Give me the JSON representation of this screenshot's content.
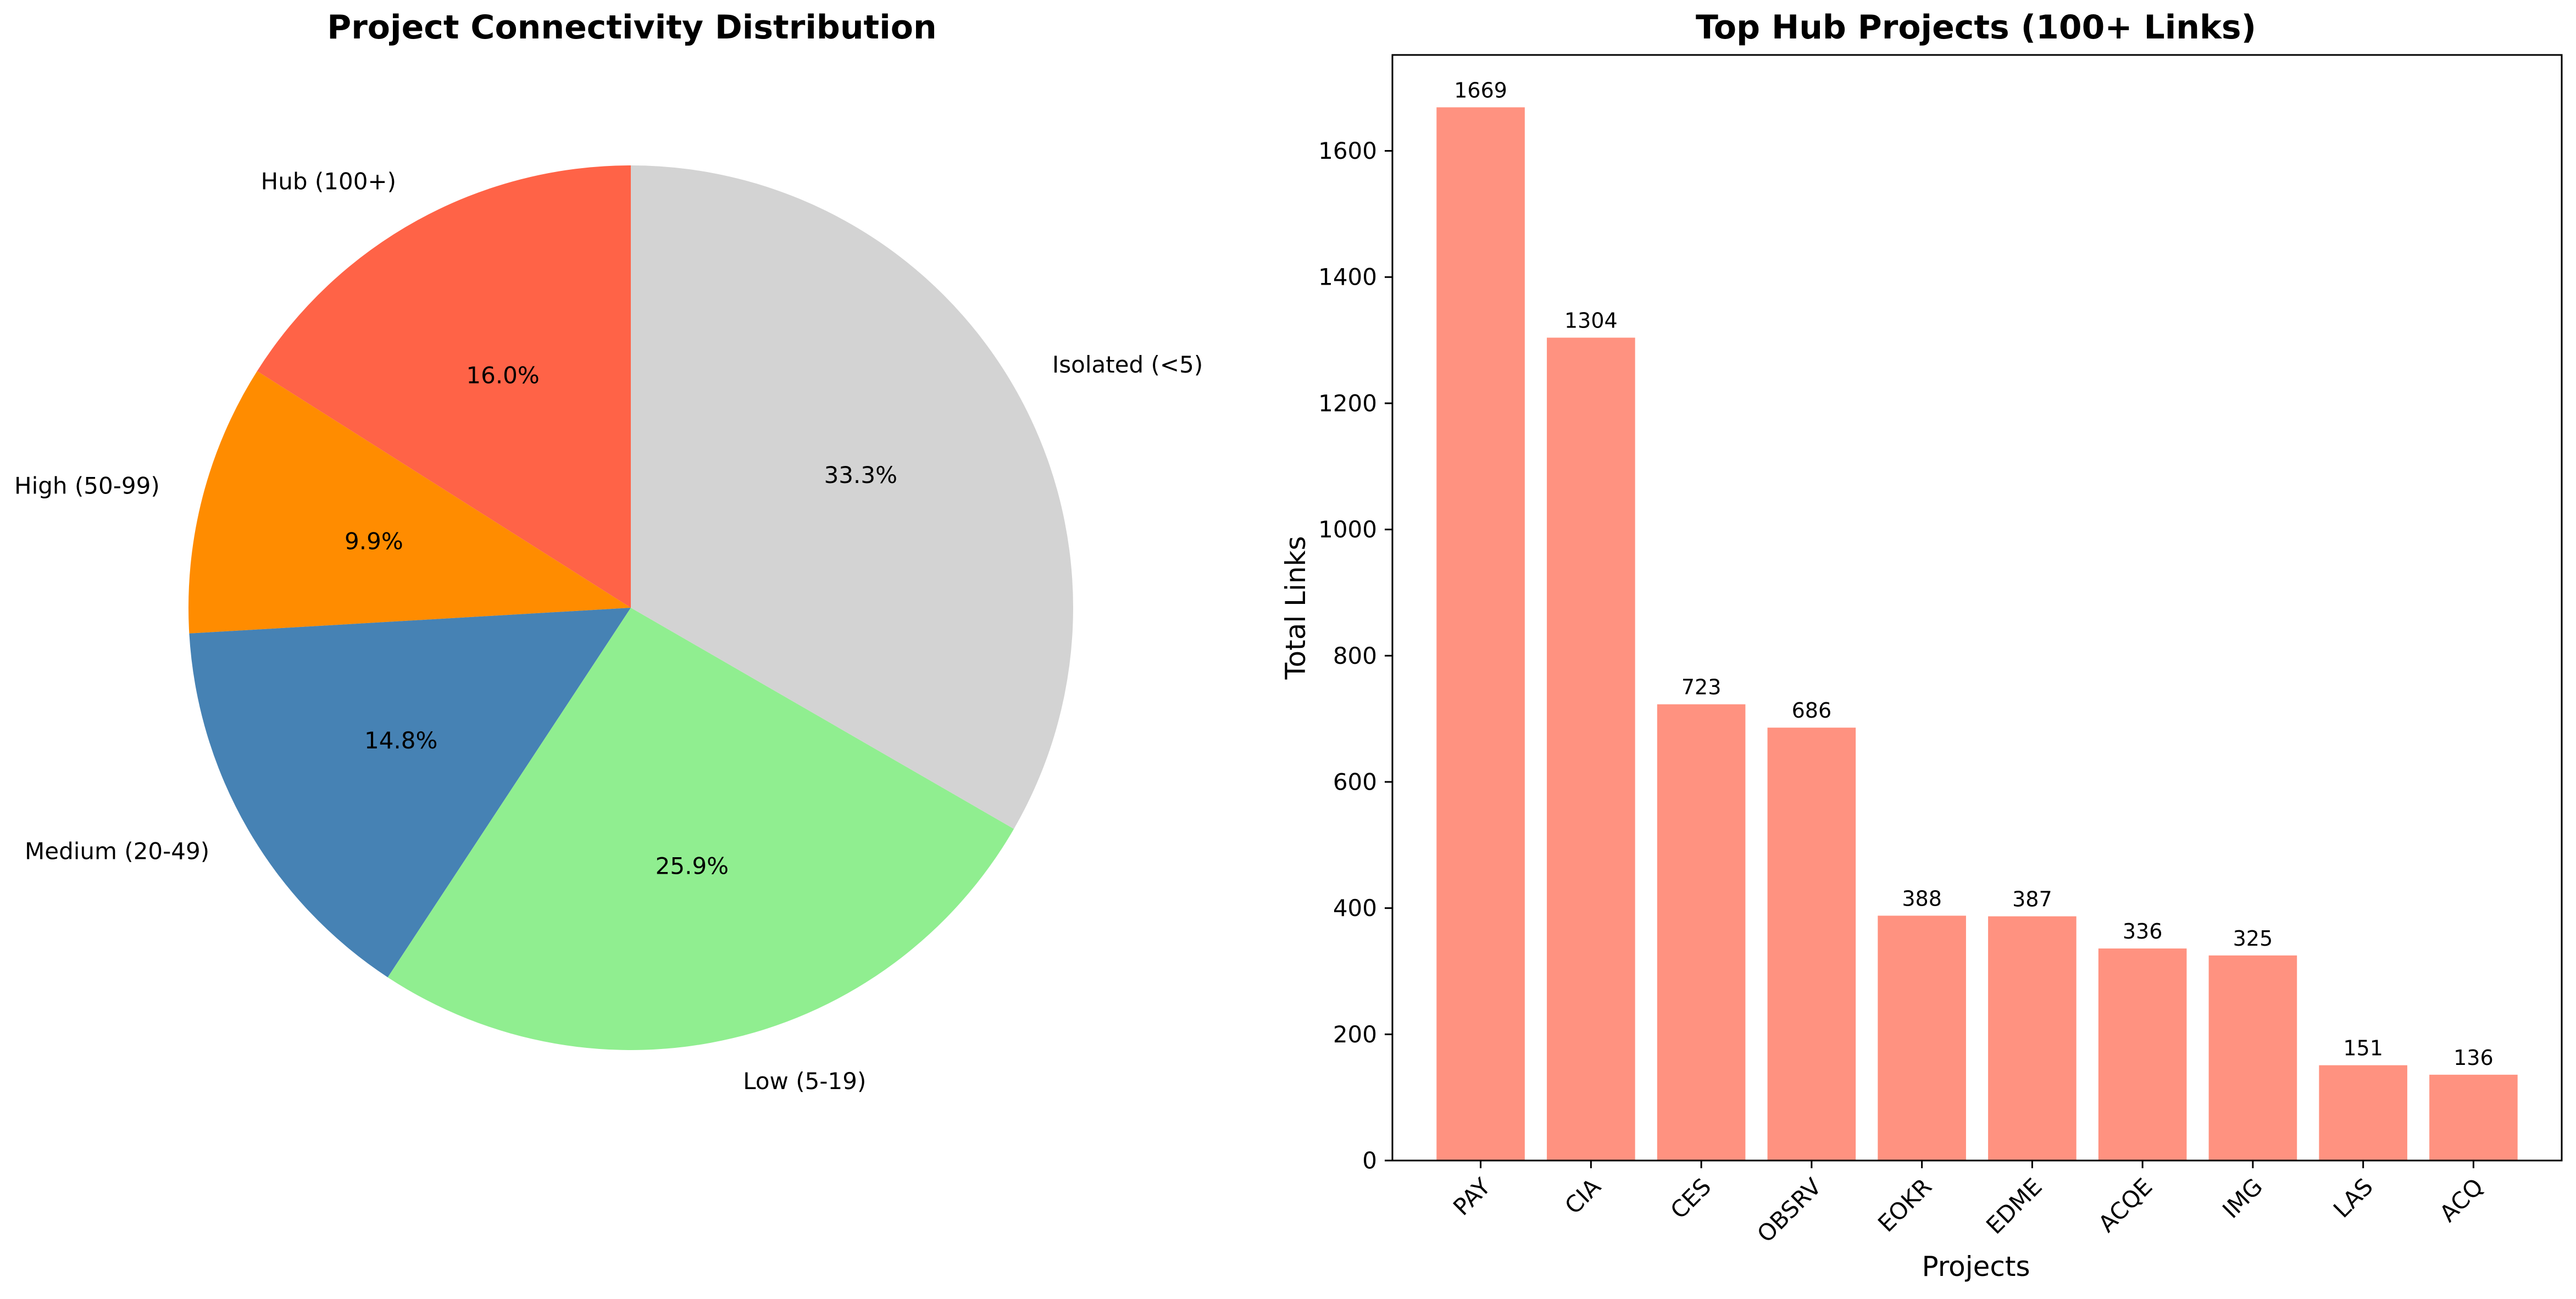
{
  "chart_data": [
    {
      "type": "pie",
      "title": "Project Connectivity Distribution",
      "start_angle": 90,
      "direction": "counterclockwise",
      "slices": [
        {
          "label": "Hub (100+)",
          "value": 16.0,
          "pct_text": "16.0%",
          "color": "#ff6347"
        },
        {
          "label": "High (50-99)",
          "value": 9.9,
          "pct_text": "9.9%",
          "color": "#ff8c00"
        },
        {
          "label": "Medium (20-49)",
          "value": 14.8,
          "pct_text": "14.8%",
          "color": "#4682b4"
        },
        {
          "label": "Low (5-19)",
          "value": 25.9,
          "pct_text": "25.9%",
          "color": "#90ee90"
        },
        {
          "label": "Isolated (<5)",
          "value": 33.3,
          "pct_text": "33.3%",
          "color": "#d3d3d3"
        }
      ]
    },
    {
      "type": "bar",
      "title": "Top Hub Projects (100+ Links)",
      "xlabel": "Projects",
      "ylabel": "Total Links",
      "categories": [
        "PAY",
        "CIA",
        "CES",
        "OBSRV",
        "EOKR",
        "EDME",
        "ACQE",
        "IMG",
        "LAS",
        "ACQ"
      ],
      "values": [
        1669,
        1304,
        723,
        686,
        388,
        387,
        336,
        325,
        151,
        136
      ],
      "value_labels": [
        "1669",
        "1304",
        "723",
        "686",
        "388",
        "387",
        "336",
        "325",
        "151",
        "136"
      ],
      "ylim": [
        0,
        1752
      ],
      "yticks": [
        0,
        200,
        400,
        600,
        800,
        1000,
        1200,
        1400,
        1600
      ],
      "bar_color": "#ff9280",
      "grid": false
    }
  ]
}
